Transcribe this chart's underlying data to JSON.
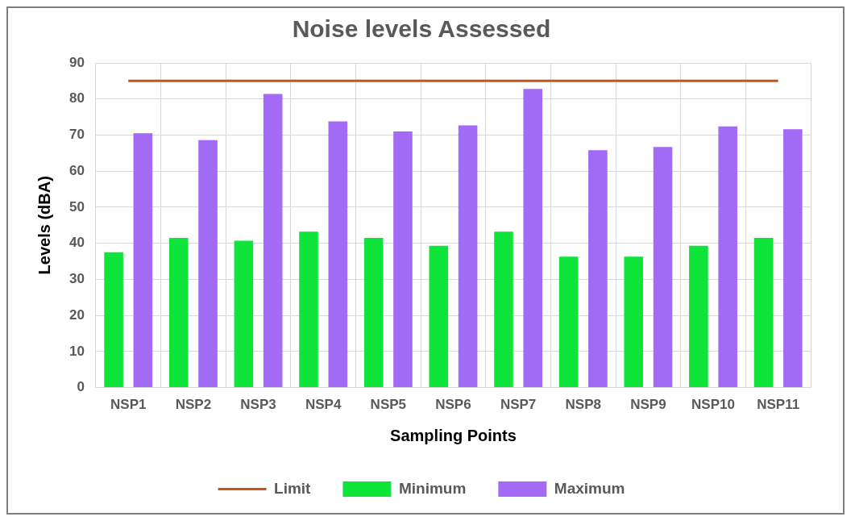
{
  "chart_data": {
    "type": "bar",
    "title": "Noise levels Assessed",
    "xlabel": "Sampling Points",
    "ylabel": "Levels (dBA)",
    "categories": [
      "NSP1",
      "NSP2",
      "NSP3",
      "NSP4",
      "NSP5",
      "NSP6",
      "NSP7",
      "NSP8",
      "NSP9",
      "NSP10",
      "NSP11"
    ],
    "series": [
      {
        "name": "Minimum",
        "color": "#0ee43a",
        "values": [
          37.5,
          41.5,
          40.7,
          43.2,
          41.5,
          39.3,
          43.2,
          36.3,
          36.3,
          39.3,
          41.5
        ]
      },
      {
        "name": "Maximum",
        "color": "#a26af5",
        "values": [
          70.5,
          68.6,
          81.4,
          73.8,
          71,
          72.7,
          82.8,
          65.8,
          66.7,
          72.4,
          71.6
        ]
      },
      {
        "name": "Limit",
        "type": "line",
        "color": "#c8561a",
        "values": [
          85,
          85,
          85,
          85,
          85,
          85,
          85,
          85,
          85,
          85,
          85
        ]
      }
    ],
    "ylim": [
      0,
      90
    ],
    "yticks": [
      0,
      10,
      20,
      30,
      40,
      50,
      60,
      70,
      80,
      90
    ],
    "grid": true,
    "legend": "bottom"
  }
}
